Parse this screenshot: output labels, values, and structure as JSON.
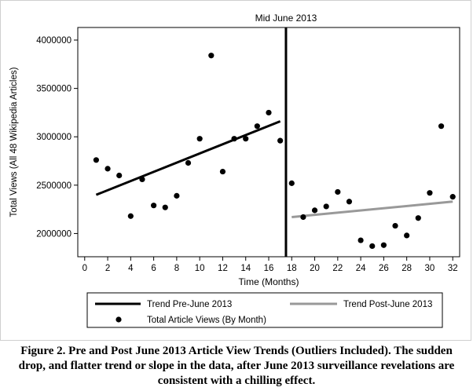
{
  "chart_data": {
    "type": "scatter",
    "ylabel": "Total Views (All 48 Wikipedia Articles)",
    "xlabel": "Time (Months)",
    "xlim": [
      -0.6,
      32.6
    ],
    "ylim": [
      1760000,
      4130000
    ],
    "x_ticks": [
      0,
      2,
      4,
      6,
      8,
      10,
      12,
      14,
      16,
      18,
      20,
      22,
      24,
      26,
      28,
      30,
      32
    ],
    "y_ticks": [
      2000000,
      2500000,
      3000000,
      3500000,
      4000000
    ],
    "grid": false,
    "annotations": [
      {
        "text": "Mid June 2013",
        "x": 17.5
      }
    ],
    "series": [
      {
        "name": "Total Article Views (By Month)",
        "marker": "circle",
        "color": "#000000",
        "points": [
          [
            1,
            2760000
          ],
          [
            2,
            2670000
          ],
          [
            3,
            2600000
          ],
          [
            4,
            2180000
          ],
          [
            5,
            2560000
          ],
          [
            6,
            2290000
          ],
          [
            7,
            2270000
          ],
          [
            8,
            2390000
          ],
          [
            9,
            2730000
          ],
          [
            10,
            2980000
          ],
          [
            11,
            3840000
          ],
          [
            12,
            2640000
          ],
          [
            13,
            2980000
          ],
          [
            14,
            2980000
          ],
          [
            15,
            3110000
          ],
          [
            16,
            3250000
          ],
          [
            17,
            2960000
          ],
          [
            18,
            2520000
          ],
          [
            19,
            2170000
          ],
          [
            20,
            2240000
          ],
          [
            21,
            2280000
          ],
          [
            22,
            2430000
          ],
          [
            23,
            2330000
          ],
          [
            24,
            1930000
          ],
          [
            25,
            1870000
          ],
          [
            26,
            1880000
          ],
          [
            27,
            2080000
          ],
          [
            28,
            1980000
          ],
          [
            29,
            2160000
          ],
          [
            30,
            2420000
          ],
          [
            31,
            3110000
          ],
          [
            32,
            2380000
          ]
        ]
      },
      {
        "name": "Trend Pre-June 2013",
        "type": "line",
        "color": "#000000",
        "points": [
          [
            1,
            2400000
          ],
          [
            17,
            3160000
          ]
        ]
      },
      {
        "name": "Trend Post-June 2013",
        "type": "line",
        "color": "#999999",
        "points": [
          [
            18,
            2170000
          ],
          [
            32,
            2330000
          ]
        ]
      }
    ],
    "legend_position": "bottom"
  },
  "caption": "Figure 2. Pre and Post June 2013 Article View Trends (Outliers Included). The sudden drop, and flatter trend or slope in the data, after June 2013 surveillance revelations are consistent with a chilling effect."
}
